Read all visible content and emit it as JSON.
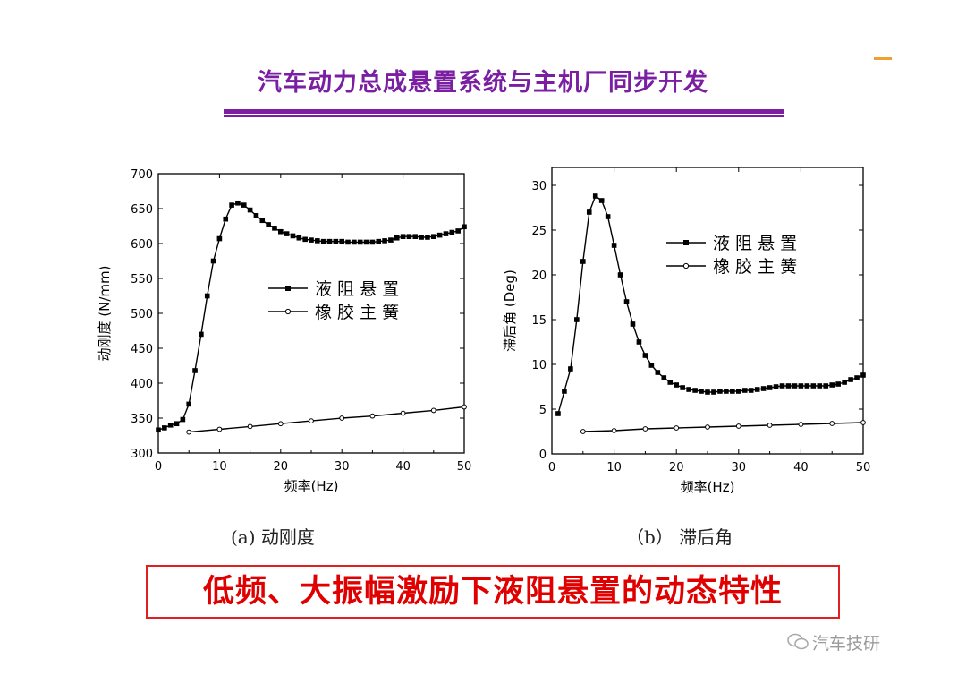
{
  "page": {
    "title": "汽车动力总成悬置系统与主机厂同步开发",
    "banner": "低频、大振幅激励下液阻悬置的动态特性",
    "watermark": "汽车技研",
    "accent_color": "#7a1fa2",
    "banner_color": "#e00000"
  },
  "chart_data": [
    {
      "id": "a",
      "type": "line",
      "caption": "(a)  动刚度",
      "xlabel": "频率(Hz)",
      "ylabel": "动刚度 (N/mm)",
      "xlim": [
        0,
        50
      ],
      "ylim": [
        300,
        700
      ],
      "xticks": [
        0,
        10,
        20,
        30,
        40,
        50
      ],
      "yticks": [
        300,
        350,
        400,
        450,
        500,
        550,
        600,
        650,
        700
      ],
      "grid": false,
      "legend_position": "center",
      "series": [
        {
          "name": "液 阻 悬 置",
          "marker": "square",
          "x": [
            0,
            1,
            2,
            3,
            4,
            5,
            6,
            7,
            8,
            9,
            10,
            11,
            12,
            13,
            14,
            15,
            16,
            17,
            18,
            19,
            20,
            21,
            22,
            23,
            24,
            25,
            26,
            27,
            28,
            29,
            30,
            31,
            32,
            33,
            34,
            35,
            36,
            37,
            38,
            39,
            40,
            41,
            42,
            43,
            44,
            45,
            46,
            47,
            48,
            49,
            50
          ],
          "y": [
            333,
            336,
            340,
            342,
            348,
            370,
            418,
            470,
            525,
            575,
            607,
            635,
            655,
            658,
            655,
            648,
            640,
            633,
            627,
            622,
            617,
            614,
            611,
            608,
            606,
            605,
            604,
            603,
            603,
            603,
            603,
            602,
            602,
            602,
            602,
            602,
            603,
            604,
            605,
            608,
            610,
            610,
            610,
            609,
            609,
            610,
            612,
            614,
            616,
            618,
            624
          ]
        },
        {
          "name": "橡 胶 主 簧",
          "marker": "circle",
          "x": [
            5,
            10,
            15,
            20,
            25,
            30,
            35,
            40,
            45,
            50
          ],
          "y": [
            330,
            334,
            338,
            342,
            346,
            350,
            353,
            357,
            361,
            366
          ]
        }
      ]
    },
    {
      "id": "b",
      "type": "line",
      "caption": "（b）  滞后角",
      "xlabel": "频率(Hz)",
      "ylabel": "滞后角 (Deg)",
      "xlim": [
        0,
        50
      ],
      "ylim": [
        0,
        32
      ],
      "xticks": [
        0,
        10,
        20,
        30,
        40,
        50
      ],
      "yticks": [
        0,
        5,
        10,
        15,
        20,
        25,
        30
      ],
      "grid": false,
      "legend_position": "top-right",
      "series": [
        {
          "name": "液 阻 悬 置",
          "marker": "square",
          "x": [
            1,
            2,
            3,
            4,
            5,
            6,
            7,
            8,
            9,
            10,
            11,
            12,
            13,
            14,
            15,
            16,
            17,
            18,
            19,
            20,
            21,
            22,
            23,
            24,
            25,
            26,
            27,
            28,
            29,
            30,
            31,
            32,
            33,
            34,
            35,
            36,
            37,
            38,
            39,
            40,
            41,
            42,
            43,
            44,
            45,
            46,
            47,
            48,
            49,
            50
          ],
          "y": [
            4.5,
            7,
            9.5,
            15,
            21.5,
            27,
            28.8,
            28.3,
            26.5,
            23.3,
            20,
            17,
            14.5,
            12.5,
            11,
            9.9,
            9.1,
            8.5,
            8,
            7.7,
            7.4,
            7.2,
            7.1,
            7,
            6.9,
            6.9,
            7,
            7,
            7,
            7,
            7.1,
            7.1,
            7.2,
            7.3,
            7.4,
            7.5,
            7.6,
            7.6,
            7.6,
            7.6,
            7.6,
            7.6,
            7.6,
            7.6,
            7.7,
            7.8,
            8,
            8.3,
            8.5,
            8.8
          ]
        },
        {
          "name": "橡 胶 主 簧",
          "marker": "circle",
          "x": [
            5,
            10,
            15,
            20,
            25,
            30,
            35,
            40,
            45,
            50
          ],
          "y": [
            2.5,
            2.6,
            2.8,
            2.9,
            3,
            3.1,
            3.2,
            3.3,
            3.4,
            3.5
          ]
        }
      ]
    }
  ]
}
